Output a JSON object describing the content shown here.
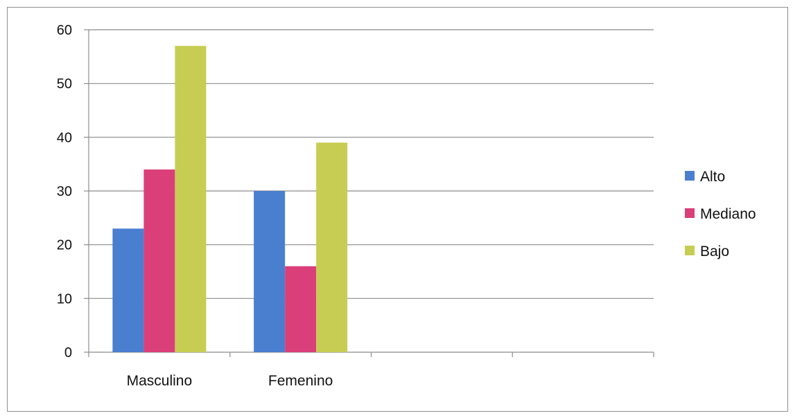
{
  "chart_data": {
    "type": "bar",
    "categories": [
      "Masculino",
      "Femenino"
    ],
    "series": [
      {
        "name": "Alto",
        "values": [
          23,
          30
        ],
        "color": "#4a7fd0"
      },
      {
        "name": "Mediano",
        "values": [
          34,
          16
        ],
        "color": "#db3f7a"
      },
      {
        "name": "Bajo",
        "values": [
          57,
          39
        ],
        "color": "#c6cd52"
      }
    ],
    "yticks": [
      0,
      10,
      20,
      30,
      40,
      50,
      60
    ],
    "ylim": [
      0,
      60
    ],
    "x_slots": 4,
    "grid": true,
    "legend_position": "right",
    "title": "",
    "xlabel": "",
    "ylabel": ""
  }
}
